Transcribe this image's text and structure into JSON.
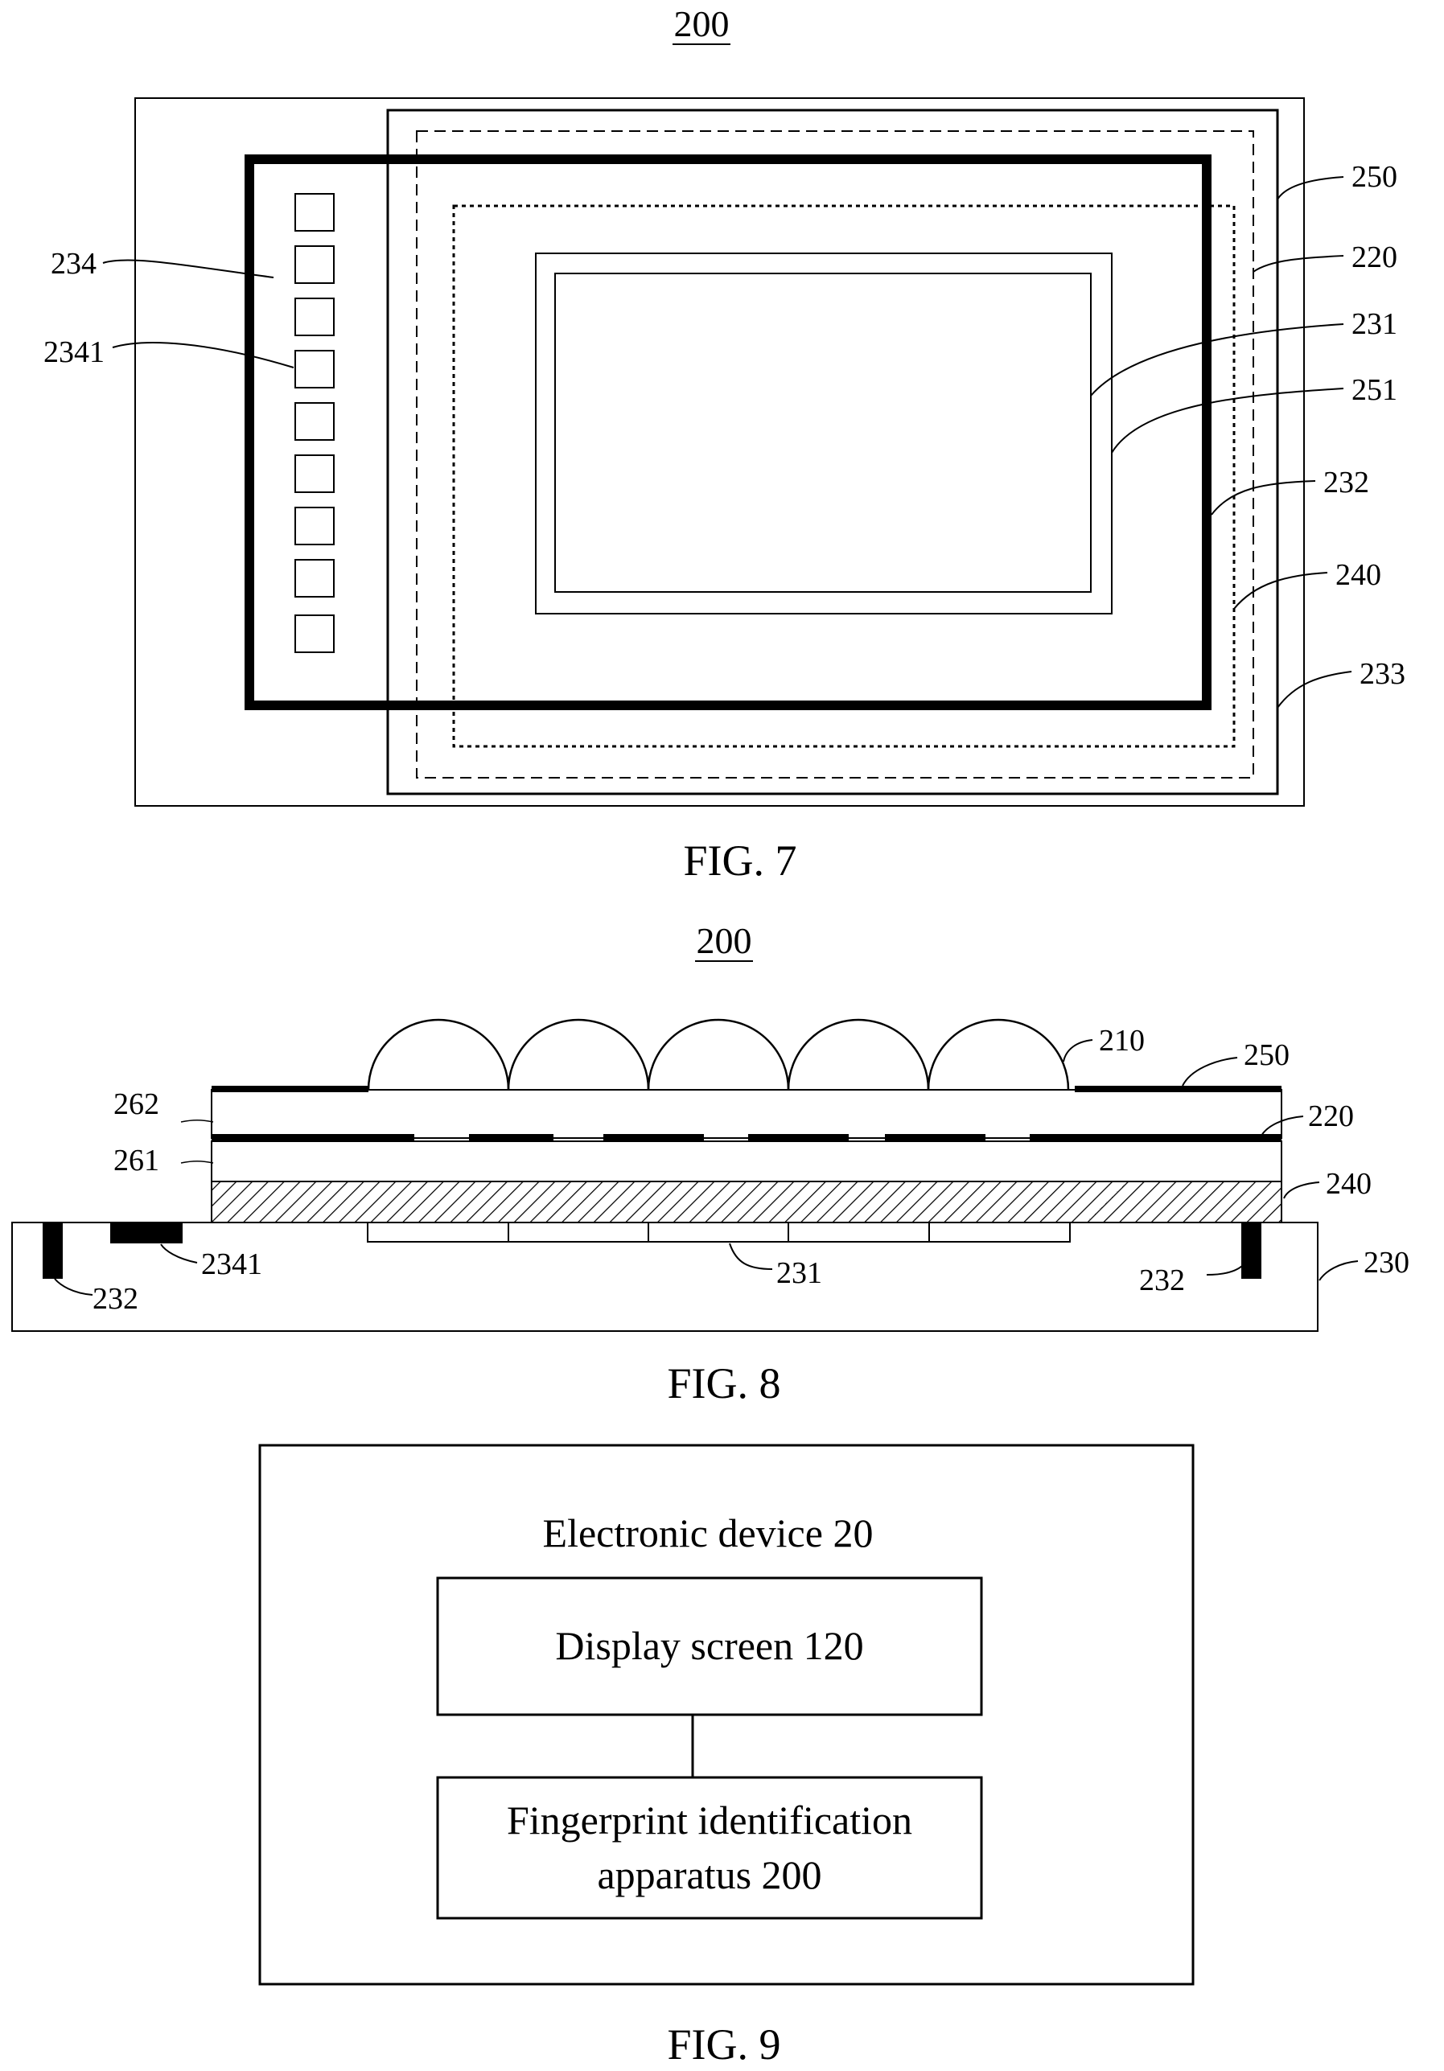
{
  "fig7": {
    "device_label": "200",
    "caption": "FIG. 7",
    "labels": {
      "l234": "234",
      "l2341": "2341",
      "l250": "250",
      "l220": "220",
      "l231": "231",
      "l251": "251",
      "l232": "232",
      "l240": "240",
      "l233": "233"
    }
  },
  "fig8": {
    "device_label": "200",
    "caption": "FIG. 8",
    "labels": {
      "l210": "210",
      "l250": "250",
      "l262": "262",
      "l220": "220",
      "l261": "261",
      "l240": "240",
      "l2341": "2341",
      "l231": "231",
      "l232_left": "232",
      "l232_right": "232",
      "l230": "230"
    }
  },
  "fig9": {
    "caption": "FIG. 9",
    "outer_title": "Electronic device 20",
    "display_box": "Display screen 120",
    "fingerprint_box_line1": "Fingerprint identification",
    "fingerprint_box_line2": "apparatus 200"
  }
}
